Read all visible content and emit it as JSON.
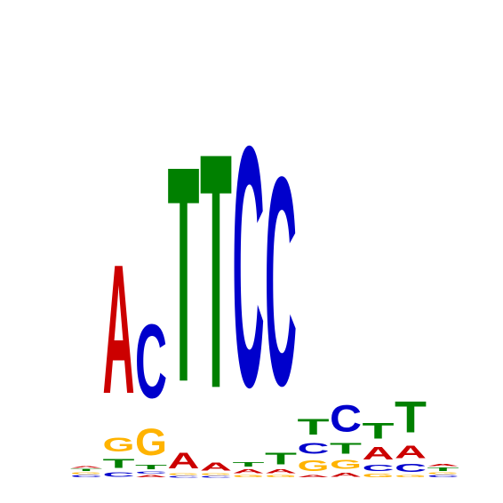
{
  "chart_data": {
    "type": "sequence-logo",
    "title": "",
    "xlabel": "",
    "ylabel": "",
    "colors": {
      "A": "#cc0000",
      "C": "#0000cc",
      "G": "#ffb300",
      "T": "#008000"
    },
    "positions": [
      [
        [
          "C",
          0.03
        ],
        [
          "G",
          0.02
        ],
        [
          "T",
          0.03
        ],
        [
          "A",
          0.02
        ]
      ],
      [
        [
          "C",
          0.06
        ],
        [
          "T",
          0.12
        ],
        [
          "G",
          0.18
        ],
        [
          "A",
          1.66
        ]
      ],
      [
        [
          "A",
          0.03
        ],
        [
          "C",
          0.03
        ],
        [
          "T",
          0.06
        ],
        [
          "G",
          0.34
        ],
        [
          "C",
          0.95
        ]
      ],
      [
        [
          "C",
          0.02
        ],
        [
          "G",
          0.02
        ],
        [
          "A",
          0.2
        ],
        [
          "T",
          2.77
        ]
      ],
      [
        [
          "C",
          0.02
        ],
        [
          "G",
          0.02
        ],
        [
          "A",
          0.1
        ],
        [
          "T",
          3.02
        ]
      ],
      [
        [
          "G",
          0.03
        ],
        [
          "A",
          0.05
        ],
        [
          "T",
          0.06
        ],
        [
          "C",
          3.09
        ]
      ],
      [
        [
          "G",
          0.03
        ],
        [
          "A",
          0.05
        ],
        [
          "T",
          0.15
        ],
        [
          "C",
          2.68
        ]
      ],
      [
        [
          "A",
          0.03
        ],
        [
          "G",
          0.14
        ],
        [
          "C",
          0.14
        ],
        [
          "T",
          0.2
        ]
      ],
      [
        [
          "A",
          0.05
        ],
        [
          "G",
          0.12
        ],
        [
          "T",
          0.14
        ],
        [
          "C",
          0.34
        ]
      ],
      [
        [
          "G",
          0.04
        ],
        [
          "C",
          0.08
        ],
        [
          "A",
          0.16
        ],
        [
          "T",
          0.2
        ]
      ],
      [
        [
          "G",
          0.03
        ],
        [
          "C",
          0.1
        ],
        [
          "A",
          0.16
        ],
        [
          "T",
          0.4
        ]
      ],
      [
        [
          "C",
          0.03
        ],
        [
          "G",
          0.02
        ],
        [
          "T",
          0.04
        ],
        [
          "A",
          0.03
        ]
      ]
    ]
  }
}
